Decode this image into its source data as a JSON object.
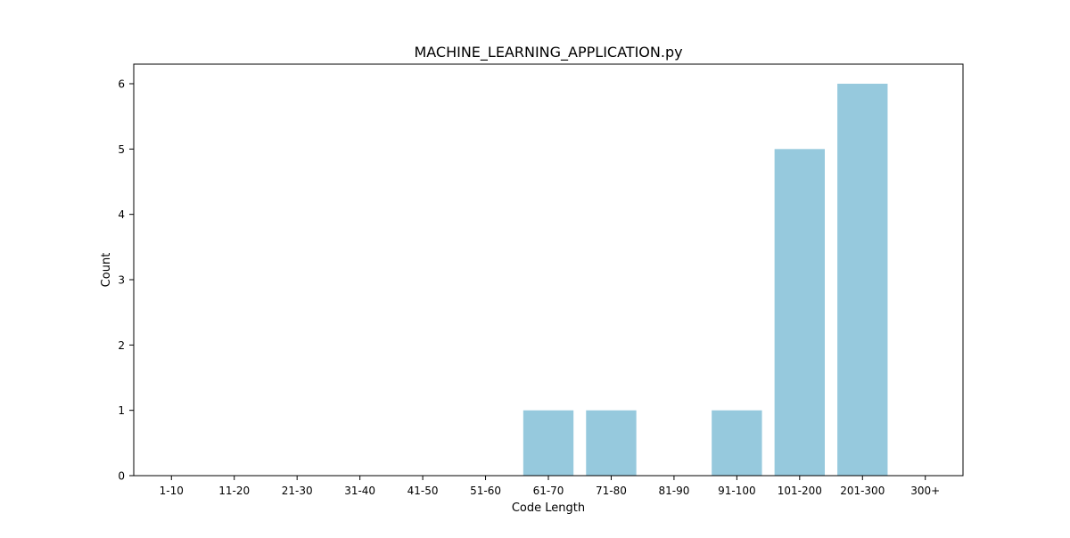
{
  "chart_data": {
    "type": "bar",
    "title": "MACHINE_LEARNING_APPLICATION.py",
    "xlabel": "Code Length",
    "ylabel": "Count",
    "categories": [
      "1-10",
      "11-20",
      "21-30",
      "31-40",
      "41-50",
      "51-60",
      "61-70",
      "71-80",
      "81-90",
      "91-100",
      "101-200",
      "201-300",
      "300+"
    ],
    "values": [
      0,
      0,
      0,
      0,
      0,
      0,
      1,
      1,
      0,
      1,
      5,
      6,
      0
    ],
    "ylim": [
      0,
      6.3
    ],
    "yticks": [
      0,
      1,
      2,
      3,
      4,
      5,
      6
    ],
    "grid": false,
    "bar_color": "#96c9dd"
  }
}
